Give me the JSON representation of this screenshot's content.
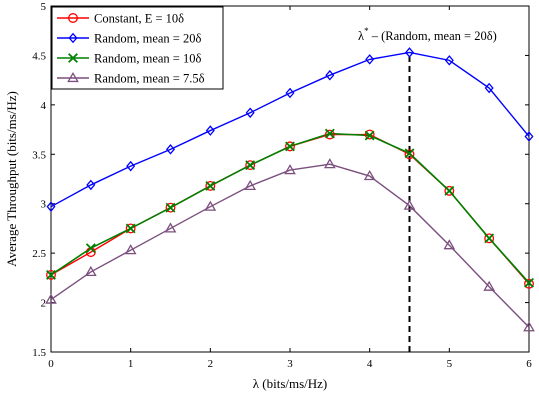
{
  "chart_data": {
    "type": "line",
    "xlabel": "λ (bits/ms/Hz)",
    "ylabel": "Average Throughput (bits/ms/Hz)",
    "xlim": [
      0,
      6
    ],
    "ylim": [
      1.5,
      5
    ],
    "xticks": [
      0,
      1,
      2,
      3,
      4,
      5,
      6
    ],
    "yticks": [
      1.5,
      2,
      2.5,
      3,
      3.5,
      4,
      4.5,
      5
    ],
    "grid": false,
    "legend_position": "top-left",
    "x": [
      0,
      0.5,
      1,
      1.5,
      2,
      2.5,
      3,
      3.5,
      4,
      4.5,
      5,
      5.5,
      6
    ],
    "series": [
      {
        "name": "Constant, E = 10δ",
        "color": "#ff0000",
        "marker": "circle",
        "values": [
          2.28,
          2.51,
          2.75,
          2.96,
          3.18,
          3.39,
          3.58,
          3.7,
          3.7,
          3.5,
          3.13,
          2.65,
          2.19
        ]
      },
      {
        "name": "Random, mean = 20δ",
        "color": "#0000ff",
        "marker": "diamond",
        "values": [
          2.97,
          3.19,
          3.38,
          3.55,
          3.74,
          3.92,
          4.12,
          4.3,
          4.46,
          4.53,
          4.45,
          4.17,
          3.68
        ]
      },
      {
        "name": "Random, mean = 10δ",
        "color": "#008000",
        "marker": "x",
        "values": [
          2.28,
          2.55,
          2.75,
          2.96,
          3.18,
          3.39,
          3.58,
          3.71,
          3.69,
          3.51,
          3.13,
          2.65,
          2.2
        ]
      },
      {
        "name": "Random, mean = 7.5δ",
        "color": "#7b4f7e",
        "marker": "triangle",
        "values": [
          2.03,
          2.31,
          2.53,
          2.75,
          2.97,
          3.18,
          3.34,
          3.4,
          3.28,
          2.98,
          2.58,
          2.16,
          1.75
        ]
      }
    ],
    "annotation": {
      "text_main": "λ",
      "text_sup": "*",
      "text_rest": " – (Random, mean = 20δ)",
      "x": 4.5
    }
  }
}
